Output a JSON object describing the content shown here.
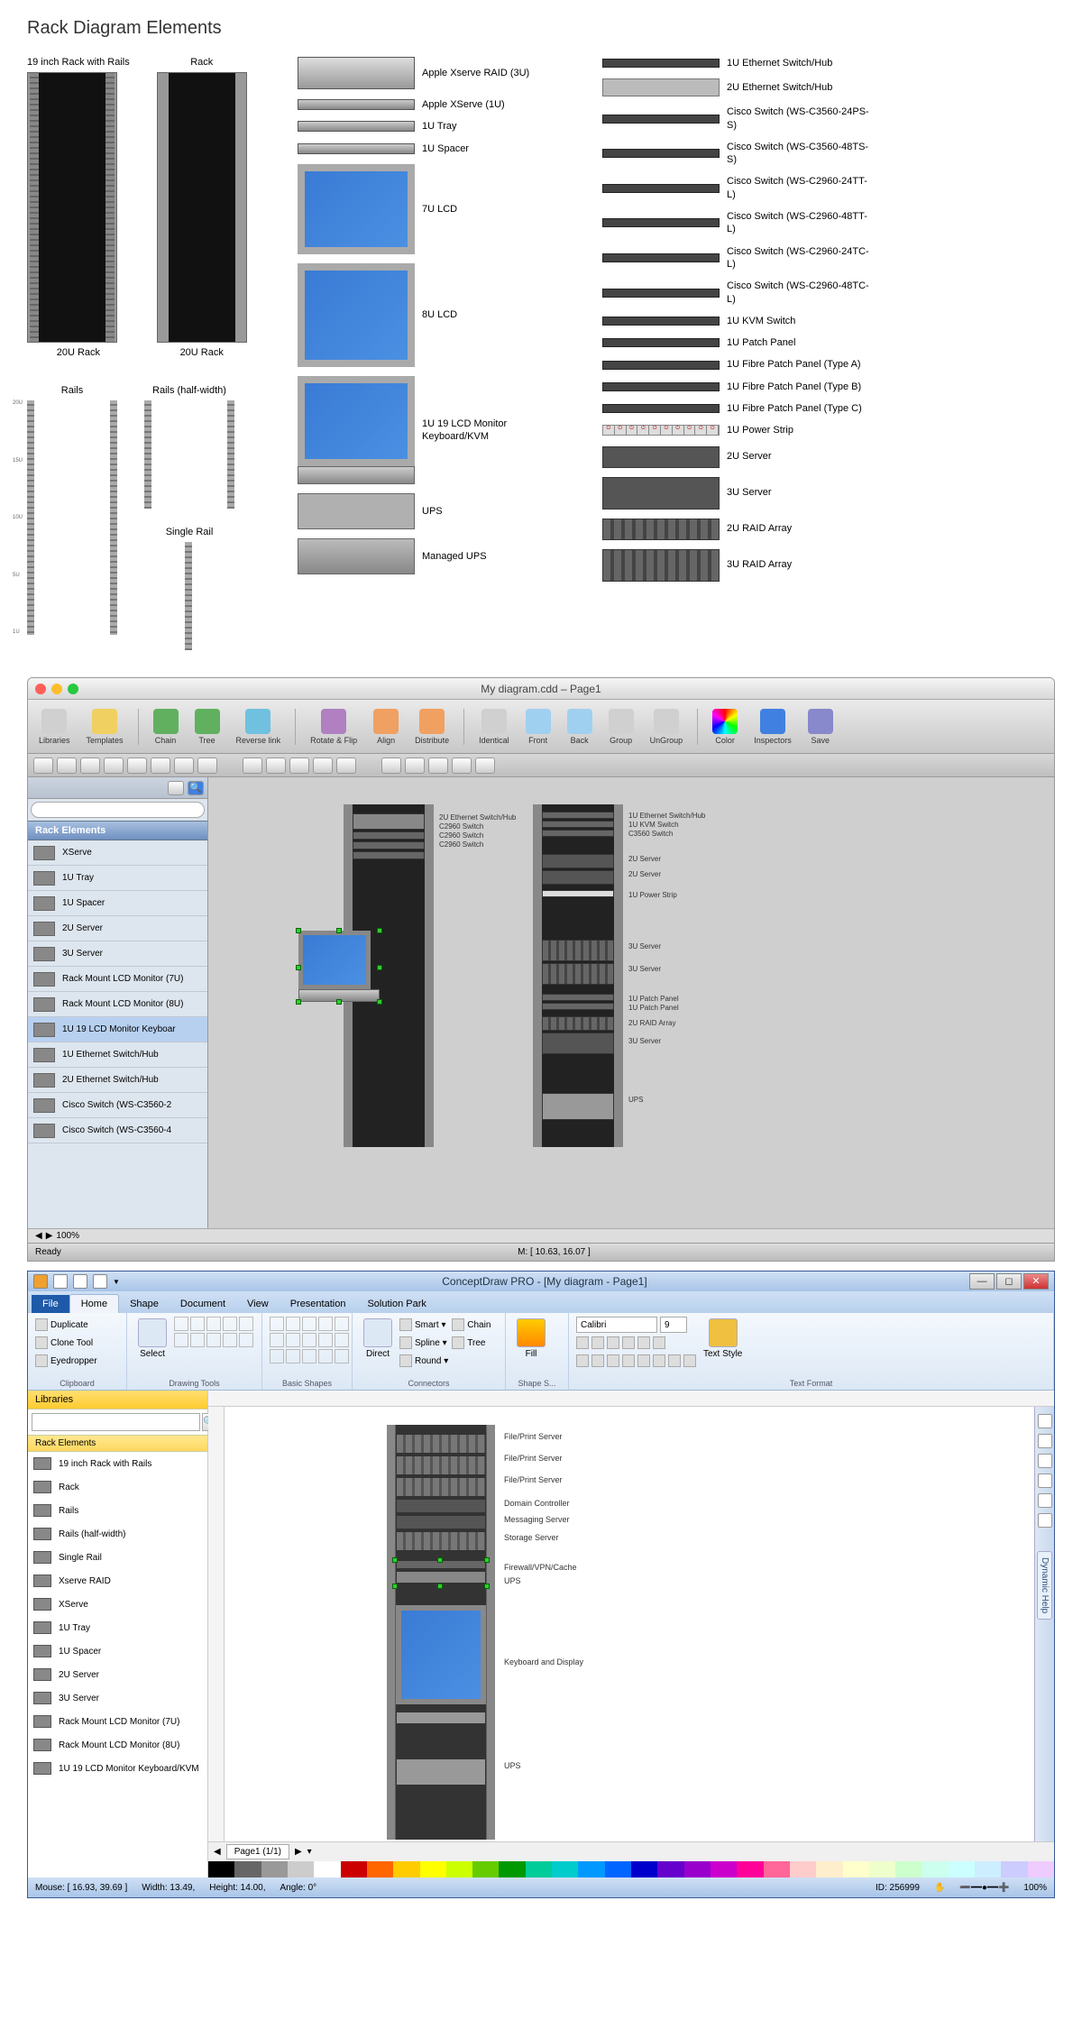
{
  "page_title": "Rack Diagram Elements",
  "col_a": {
    "rack_rails_title": "19 inch Rack with Rails",
    "rack_title": "Rack",
    "rack_size": "20U Rack",
    "rails_title": "Rails",
    "rails_half": "Rails (half-width)",
    "single_rail": "Single Rail"
  },
  "col_b": [
    {
      "k": "xraid",
      "lab": "Apple Xserve RAID (3U)"
    },
    {
      "k": "xserve",
      "lab": "Apple XServe (1U)"
    },
    {
      "k": "tray",
      "lab": "1U Tray"
    },
    {
      "k": "spacer",
      "lab": "1U Spacer"
    },
    {
      "k": "lcd7",
      "lab": "7U LCD"
    },
    {
      "k": "lcd8",
      "lab": "8U LCD"
    },
    {
      "k": "kvm",
      "lab": "1U 19 LCD Monitor Keyboard/KVM"
    },
    {
      "k": "ups",
      "lab": "UPS"
    },
    {
      "k": "mups",
      "lab": "Managed UPS"
    }
  ],
  "col_c": [
    {
      "k": "sw",
      "lab": "1U Ethernet Switch/Hub"
    },
    {
      "k": "sw2",
      "lab": "2U Ethernet Switch/Hub"
    },
    {
      "k": "sw",
      "lab": "Cisco Switch (WS-C3560-24PS-S)"
    },
    {
      "k": "sw",
      "lab": "Cisco Switch (WS-C3560-48TS-S)"
    },
    {
      "k": "sw",
      "lab": "Cisco Switch (WS-C2960-24TT-L)"
    },
    {
      "k": "sw",
      "lab": "Cisco Switch (WS-C2960-48TT-L)"
    },
    {
      "k": "sw",
      "lab": "Cisco Switch (WS-C2960-24TC-L)"
    },
    {
      "k": "sw",
      "lab": "Cisco Switch (WS-C2960-48TC-L)"
    },
    {
      "k": "sw",
      "lab": "1U KVM Switch"
    },
    {
      "k": "sw",
      "lab": "1U Patch Panel"
    },
    {
      "k": "sw",
      "lab": "1U Fibre Patch Panel (Type A)"
    },
    {
      "k": "sw",
      "lab": "1U Fibre Patch Panel (Type B)"
    },
    {
      "k": "sw",
      "lab": "1U Fibre Patch Panel (Type C)"
    },
    {
      "k": "ps",
      "lab": "1U Power Strip"
    },
    {
      "k": "srv2",
      "lab": "2U Server"
    },
    {
      "k": "srv3",
      "lab": "3U Server"
    },
    {
      "k": "raid2",
      "lab": "2U RAID Array"
    },
    {
      "k": "raid3",
      "lab": "3U RAID Array"
    }
  ],
  "mac": {
    "title": "My diagram.cdd – Page1",
    "toolbar": [
      {
        "lab": "Libraries",
        "c": "#d0d0d0"
      },
      {
        "lab": "Templates",
        "c": "#f0d060"
      },
      {
        "lab": "Chain",
        "c": "#60b060"
      },
      {
        "lab": "Tree",
        "c": "#60b060"
      },
      {
        "lab": "Reverse link",
        "c": "#70c0e0"
      },
      {
        "lab": "Rotate & Flip",
        "c": "#b080c0"
      },
      {
        "lab": "Align",
        "c": "#f0a060"
      },
      {
        "lab": "Distribute",
        "c": "#f0a060"
      },
      {
        "lab": "Identical",
        "c": "#d0d0d0"
      },
      {
        "lab": "Front",
        "c": "#a0d0f0"
      },
      {
        "lab": "Back",
        "c": "#a0d0f0"
      },
      {
        "lab": "Group",
        "c": "#d0d0d0"
      },
      {
        "lab": "UnGroup",
        "c": "#d0d0d0"
      },
      {
        "lab": "Color",
        "c": "conic"
      },
      {
        "lab": "Inspectors",
        "c": "#4080e0"
      },
      {
        "lab": "Save",
        "c": "#8888cc"
      }
    ],
    "side_title": "Rack Elements",
    "side_items": [
      "XServe",
      "1U Tray",
      "1U Spacer",
      "2U Server",
      "3U Server",
      "Rack Mount LCD Monitor (7U)",
      "Rack Mount LCD Monitor (8U)",
      "1U 19 LCD Monitor Keyboar",
      "1U Ethernet Switch/Hub",
      "2U Ethernet Switch/Hub",
      "Cisco Switch (WS-C3560-2",
      "Cisco Switch (WS-C3560-4"
    ],
    "side_selected": 7,
    "rack1_labels": [
      "2U Ethernet Switch/Hub",
      "C2960 Switch",
      "C2960 Switch",
      "C2960 Switch"
    ],
    "rack2_labels": [
      "1U Ethernet Switch/Hub",
      "1U KVM Switch",
      "C3560 Switch",
      "",
      "2U Server",
      "2U Server",
      "1U Power Strip",
      "",
      "3U Server",
      "3U Server",
      "1U Patch Panel",
      "1U Patch Panel",
      "2U RAID Array",
      "3U Server",
      "",
      "UPS"
    ],
    "zoom": "100%",
    "status_ready": "Ready",
    "status_m": "M: [ 10.63, 16.07 ]"
  },
  "win": {
    "title": "ConceptDraw PRO - [My diagram - Page1]",
    "tabs": [
      "File",
      "Home",
      "Shape",
      "Document",
      "View",
      "Presentation",
      "Solution Park"
    ],
    "active_tab": 1,
    "ribbon": {
      "clipboard": {
        "label": "Clipboard",
        "items": [
          "Duplicate",
          "Clone Tool",
          "Eyedropper"
        ]
      },
      "drawing": {
        "label": "Drawing Tools",
        "select": "Select"
      },
      "shapes": {
        "label": "Basic Shapes"
      },
      "connectors": {
        "label": "Connectors",
        "direct": "Direct",
        "items": [
          "Smart",
          "Spline",
          "Round"
        ],
        "chain": "Chain",
        "tree": "Tree"
      },
      "shapestyle": {
        "label": "Shape S...",
        "fill": "Fill"
      },
      "textformat": {
        "label": "Text Format",
        "font": "Calibri",
        "size": "9",
        "textstyle": "Text Style"
      }
    },
    "side_head": "Libraries",
    "side_cat": "Rack Elements",
    "side_items": [
      "19 inch Rack with Rails",
      "Rack",
      "Rails",
      "Rails (half-width)",
      "Single Rail",
      "Xserve RAID",
      "XServe",
      "1U Tray",
      "1U Spacer",
      "2U Server",
      "3U Server",
      "Rack Mount LCD Monitor (7U)",
      "Rack Mount LCD Monitor (8U)",
      "1U 19 LCD Monitor Keyboard/KVM"
    ],
    "rack_labels": [
      "File/Print Server",
      "File/Print Server",
      "File/Print Server",
      "Domain Controller",
      "Messaging Server",
      "Storage Server",
      "Firewall/VPN/Cache",
      "UPS",
      "",
      "Keyboard and Display",
      "",
      "UPS"
    ],
    "page_tab": "Page1 (1/1)",
    "status": {
      "mouse": "Mouse: [ 16.93, 39.69 ]",
      "width": "Width: 13.49,",
      "height": "Height: 14.00,",
      "angle": "Angle: 0°",
      "id": "ID: 256999",
      "zoom": "100%"
    },
    "palette": [
      "#000000",
      "#666666",
      "#999999",
      "#cccccc",
      "#ffffff",
      "#cc0000",
      "#ff6600",
      "#ffcc00",
      "#ffff00",
      "#ccff00",
      "#66cc00",
      "#009900",
      "#00cc99",
      "#00cccc",
      "#0099ff",
      "#0066ff",
      "#0000cc",
      "#6600cc",
      "#9900cc",
      "#cc00cc",
      "#ff0099",
      "#ff6699",
      "#ffcccc",
      "#ffeecc",
      "#ffffcc",
      "#eeffcc",
      "#ccffcc",
      "#ccffee",
      "#ccffff",
      "#cceeff",
      "#ccccff",
      "#eeccff"
    ],
    "dh": "Dynamic Help"
  }
}
